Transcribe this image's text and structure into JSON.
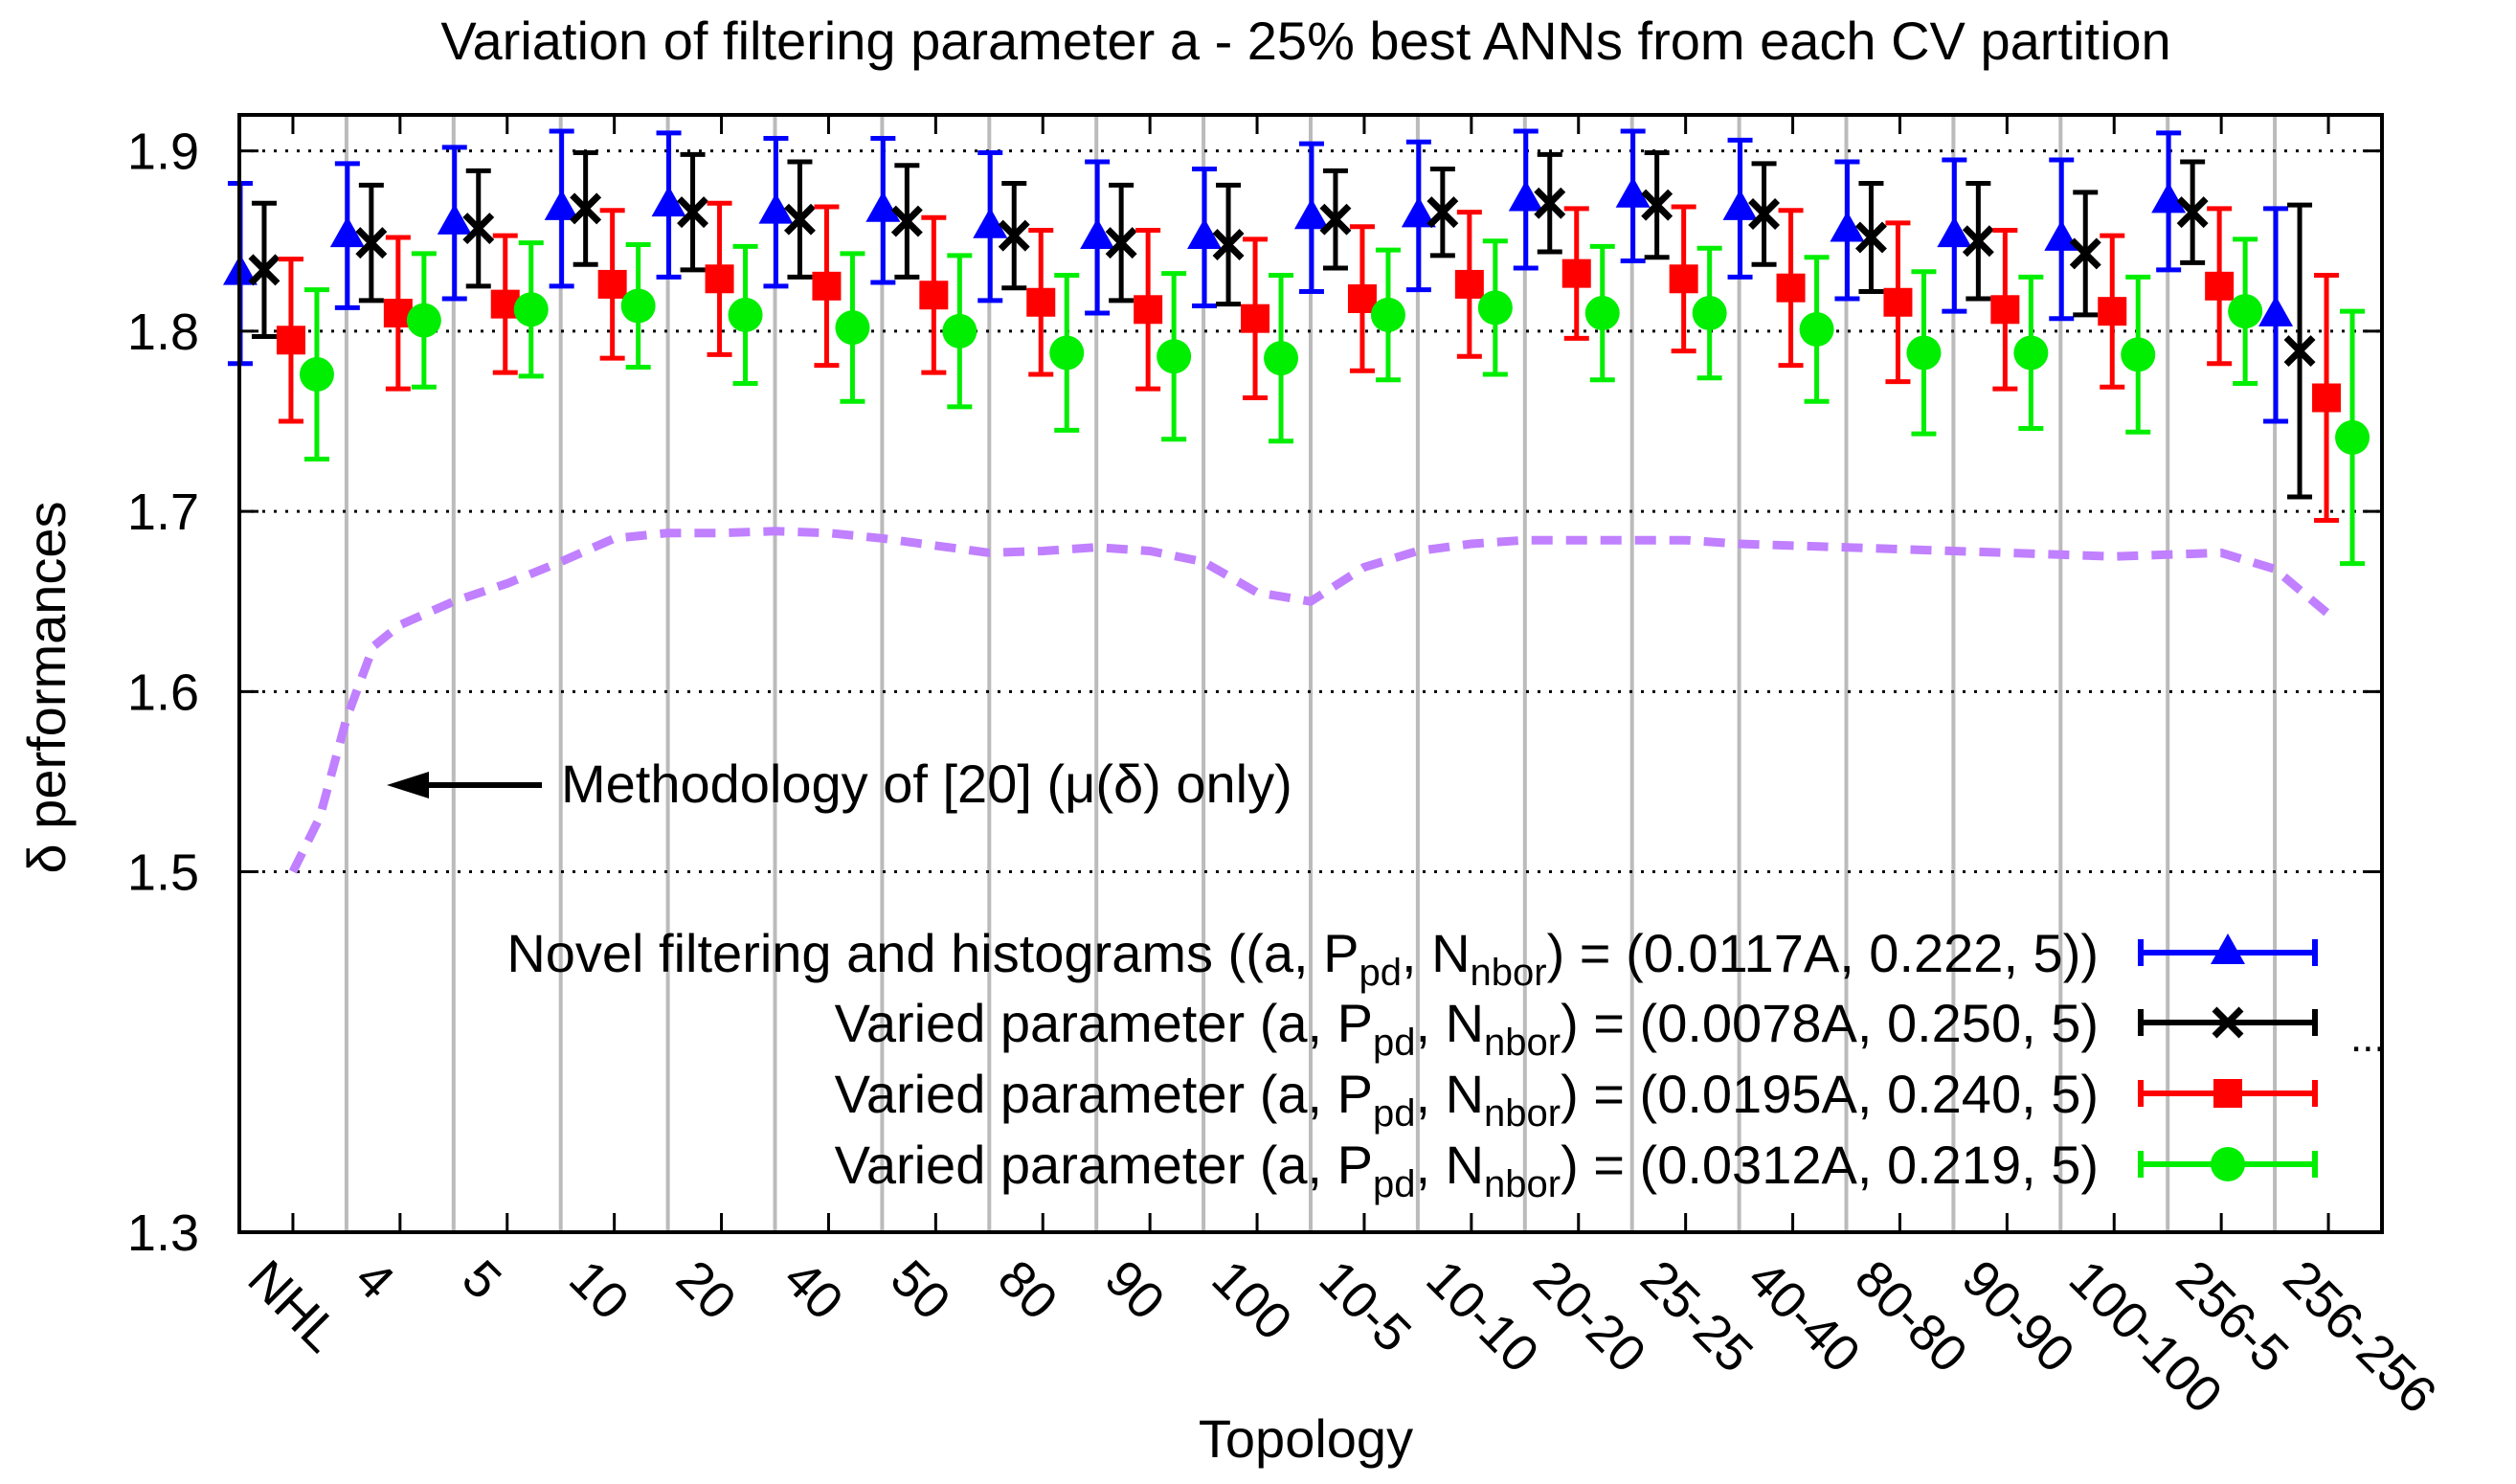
{
  "chart_data": {
    "type": "errorbar",
    "title": "Variation of filtering parameter a - 25% best ANNs from each CV partition",
    "xlabel": "Topology",
    "ylabel": "δ performances",
    "ylim": [
      1.3,
      1.92
    ],
    "yticks": [
      "1.3",
      "1.5",
      "1.6",
      "1.7",
      "1.8",
      "1.9"
    ],
    "categories": [
      "NHL",
      "4",
      "5",
      "10",
      "20",
      "40",
      "50",
      "80",
      "90",
      "100",
      "10-5",
      "10-10",
      "20-20",
      "25-25",
      "40-40",
      "80-80",
      "90-90",
      "100-100",
      "256-5",
      "256-256"
    ],
    "annotation": "Methodology of [20] (μ(δ) only)",
    "legend_suffix": "...",
    "series": [
      {
        "name": "Novel filtering and histograms ((a, P",
        "sub1": "pd",
        "mid": ", N",
        "sub2": "nbor",
        "tail": ") = (0.0117A, 0.222, 5))",
        "color": "#0000ff",
        "marker": "triangle",
        "values": [
          1.832,
          1.853,
          1.86,
          1.868,
          1.87,
          1.866,
          1.867,
          1.858,
          1.852,
          1.852,
          1.863,
          1.864,
          1.873,
          1.875,
          1.868,
          1.856,
          1.853,
          1.851,
          1.872,
          1.809
        ],
        "errors": [
          0.05,
          0.04,
          0.042,
          0.043,
          0.04,
          0.041,
          0.04,
          0.041,
          0.042,
          0.038,
          0.041,
          0.041,
          0.038,
          0.036,
          0.038,
          0.038,
          0.042,
          0.044,
          0.038,
          0.059
        ]
      },
      {
        "name": "Varied parameter (a, P",
        "sub1": "pd",
        "mid": ", N",
        "sub2": "nbor",
        "tail": ") = (0.0078A, 0.250, 5)",
        "color": "#000000",
        "marker": "cross",
        "values": [
          1.834,
          1.849,
          1.857,
          1.868,
          1.866,
          1.862,
          1.861,
          1.853,
          1.849,
          1.848,
          1.862,
          1.866,
          1.871,
          1.87,
          1.865,
          1.852,
          1.85,
          1.843,
          1.866,
          1.789
        ],
        "errors": [
          0.037,
          0.032,
          0.032,
          0.031,
          0.032,
          0.032,
          0.031,
          0.029,
          0.032,
          0.033,
          0.027,
          0.024,
          0.027,
          0.029,
          0.028,
          0.03,
          0.032,
          0.034,
          0.028,
          0.081
        ]
      },
      {
        "name": "Varied parameter (a, P",
        "sub1": "pd",
        "mid": ", N",
        "sub2": "nbor",
        "tail": ") = (0.0195A, 0.240, 5)",
        "color": "#ff0000",
        "marker": "square",
        "values": [
          1.795,
          1.81,
          1.815,
          1.826,
          1.829,
          1.825,
          1.82,
          1.816,
          1.812,
          1.807,
          1.818,
          1.826,
          1.832,
          1.829,
          1.824,
          1.816,
          1.812,
          1.811,
          1.825,
          1.763
        ],
        "errors": [
          0.045,
          0.042,
          0.038,
          0.041,
          0.042,
          0.044,
          0.043,
          0.04,
          0.044,
          0.044,
          0.04,
          0.04,
          0.036,
          0.04,
          0.043,
          0.044,
          0.044,
          0.042,
          0.043,
          0.068
        ]
      },
      {
        "name": "Varied parameter (a, P",
        "sub1": "pd",
        "mid": ", N",
        "sub2": "nbor",
        "tail": ") = (0.0312A, 0.219, 5)",
        "color": "#00ee00",
        "marker": "circle",
        "values": [
          1.776,
          1.806,
          1.812,
          1.814,
          1.809,
          1.802,
          1.8,
          1.788,
          1.786,
          1.785,
          1.809,
          1.813,
          1.81,
          1.81,
          1.801,
          1.788,
          1.788,
          1.787,
          1.811,
          1.741
        ],
        "errors": [
          0.047,
          0.037,
          0.037,
          0.034,
          0.038,
          0.041,
          0.042,
          0.043,
          0.046,
          0.046,
          0.036,
          0.037,
          0.037,
          0.036,
          0.04,
          0.045,
          0.042,
          0.043,
          0.04,
          0.07
        ]
      }
    ],
    "dashed_curve": {
      "name": "Methodology of [20] (μ(δ) only)",
      "color": "#c080ff",
      "x": [
        0.0,
        0.25,
        0.5,
        0.75,
        1.0,
        1.5,
        2.0,
        2.5,
        3.0,
        3.5,
        4.0,
        4.5,
        5.0,
        5.5,
        6.0,
        6.5,
        7.0,
        7.5,
        8.0,
        8.5,
        9.0,
        9.5,
        10.0,
        10.5,
        11.0,
        11.5,
        12.0,
        12.5,
        13.0,
        13.5,
        14.0,
        14.5,
        15.0,
        15.5,
        16.0,
        16.5,
        17.0,
        17.5,
        18.0,
        18.5,
        19.0
      ],
      "y": [
        1.5,
        1.53,
        1.585,
        1.625,
        1.637,
        1.65,
        1.66,
        1.672,
        1.685,
        1.688,
        1.688,
        1.689,
        1.688,
        1.685,
        1.681,
        1.677,
        1.678,
        1.68,
        1.678,
        1.672,
        1.655,
        1.65,
        1.669,
        1.678,
        1.682,
        1.684,
        1.684,
        1.684,
        1.684,
        1.682,
        1.681,
        1.68,
        1.679,
        1.678,
        1.677,
        1.676,
        1.675,
        1.676,
        1.677,
        1.668,
        1.643
      ]
    }
  }
}
